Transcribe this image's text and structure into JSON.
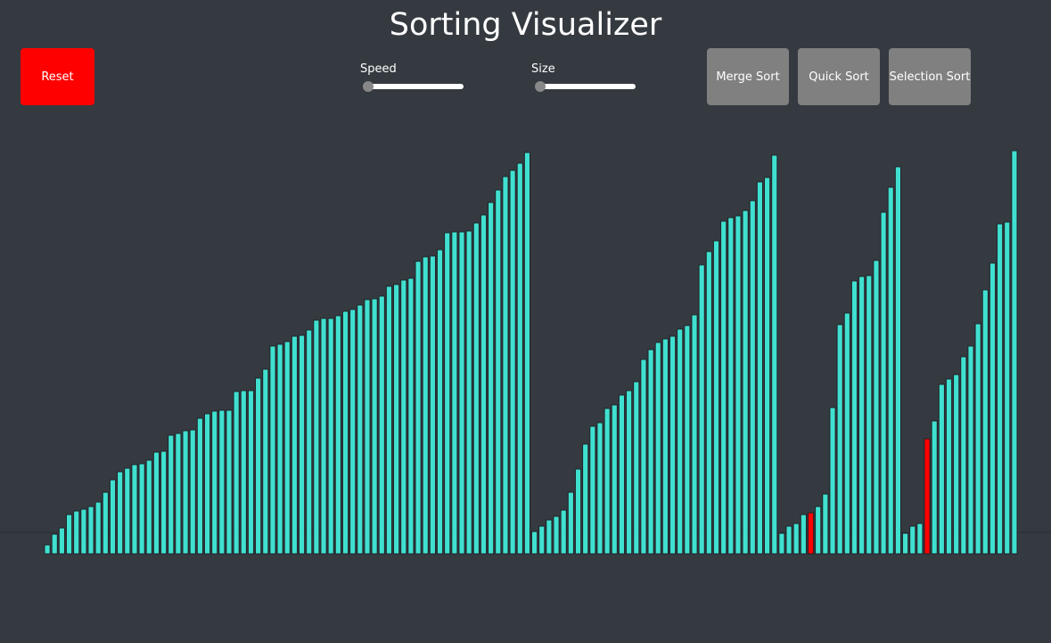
{
  "header": {
    "title": "Sorting Visualizer"
  },
  "controls": {
    "reset": "Reset",
    "speed": "Speed",
    "size": "Size",
    "algorithms": [
      "Merge Sort",
      "Quick Sort",
      "Selection Sort"
    ]
  },
  "bars": {
    "color": "#40e0d0",
    "highlight_color": "#ff0000",
    "highlight_indices": [
      105,
      121
    ],
    "values": [
      10,
      22,
      29,
      44,
      48,
      50,
      53,
      58,
      69,
      83,
      92,
      96,
      100,
      101,
      105,
      114,
      115,
      133,
      135,
      138,
      139,
      152,
      157,
      160,
      161,
      161,
      182,
      183,
      183,
      197,
      207,
      233,
      235,
      238,
      244,
      245,
      251,
      262,
      264,
      264,
      267,
      272,
      274,
      279,
      285,
      286,
      289,
      300,
      302,
      307,
      309,
      328,
      333,
      334,
      341,
      360,
      361,
      361,
      362,
      371,
      380,
      394,
      408,
      423,
      430,
      438,
      450,
      25,
      31,
      38,
      42,
      49,
      69,
      95,
      123,
      143,
      147,
      163,
      167,
      178,
      183,
      193,
      218,
      229,
      237,
      241,
      244,
      252,
      256,
      268,
      324,
      339,
      351,
      373,
      377,
      379,
      385,
      396,
      417,
      422,
      447,
      23,
      31,
      34,
      44,
      46,
      53,
      67,
      164,
      257,
      270,
      306,
      311,
      312,
      329,
      383,
      411,
      434,
      23,
      31,
      34,
      129,
      149,
      190,
      196,
      201,
      221,
      233,
      258,
      296,
      326,
      370,
      372,
      452
    ]
  }
}
